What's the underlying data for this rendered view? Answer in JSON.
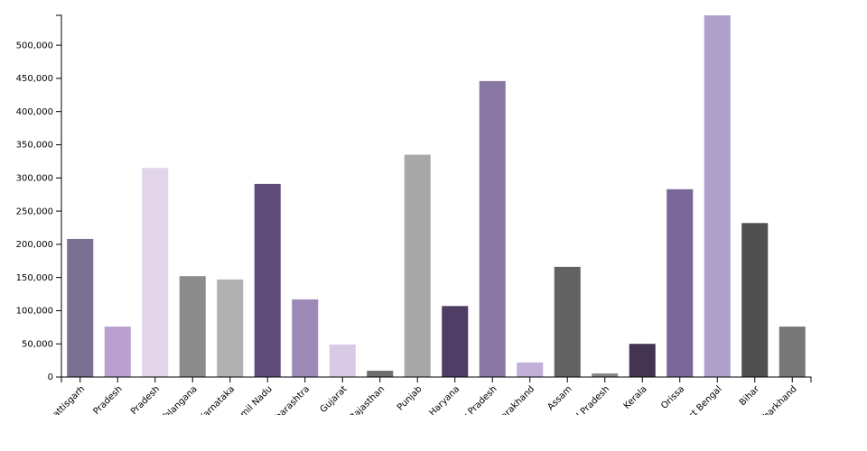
{
  "chart_data": {
    "type": "bar",
    "title": "",
    "xlabel": "",
    "ylabel": "",
    "ylim": [
      0,
      545000
    ],
    "yticks": [
      0,
      50000,
      100000,
      150000,
      200000,
      250000,
      300000,
      350000,
      400000,
      450000,
      500000
    ],
    "ytick_labels": [
      "0",
      "50,000",
      "100,000",
      "150,000",
      "200,000",
      "250,000",
      "300,000",
      "350,000",
      "400,000",
      "450,000",
      "500,000"
    ],
    "grid": false,
    "categories": [
      "Chhattisgarh",
      "Madhya Pradesh",
      "Andhra Pradesh",
      "Telangana",
      "Karnataka",
      "Tamil Nadu",
      "Maharashtra",
      "Gujarat",
      "Rajasthan",
      "Punjab",
      "Haryana",
      "Uttar Pradesh",
      "Uttarakhand",
      "Assam",
      "Himachal Pradesh",
      "Kerala",
      "Orissa",
      "West Bengal",
      "Bihar",
      "Jharkhand"
    ],
    "values": [
      208000,
      76000,
      315000,
      152000,
      147000,
      291000,
      117000,
      49000,
      9500,
      335000,
      107000,
      446000,
      22000,
      166000,
      5500,
      50000,
      283000,
      545000,
      232000,
      76000
    ],
    "colors": [
      "#7a6e93",
      "#b9a0cf",
      "#e2d5ea",
      "#8c8c8c",
      "#b0b0b0",
      "#5e4d7a",
      "#9d89b8",
      "#d8c9e4",
      "#6e6e6e",
      "#a8a8a8",
      "#4f3d66",
      "#8877a3",
      "#c2b0d9",
      "#626262",
      "#888888",
      "#433551",
      "#7b6699",
      "#b0a0cc",
      "#505050",
      "#777777"
    ]
  }
}
